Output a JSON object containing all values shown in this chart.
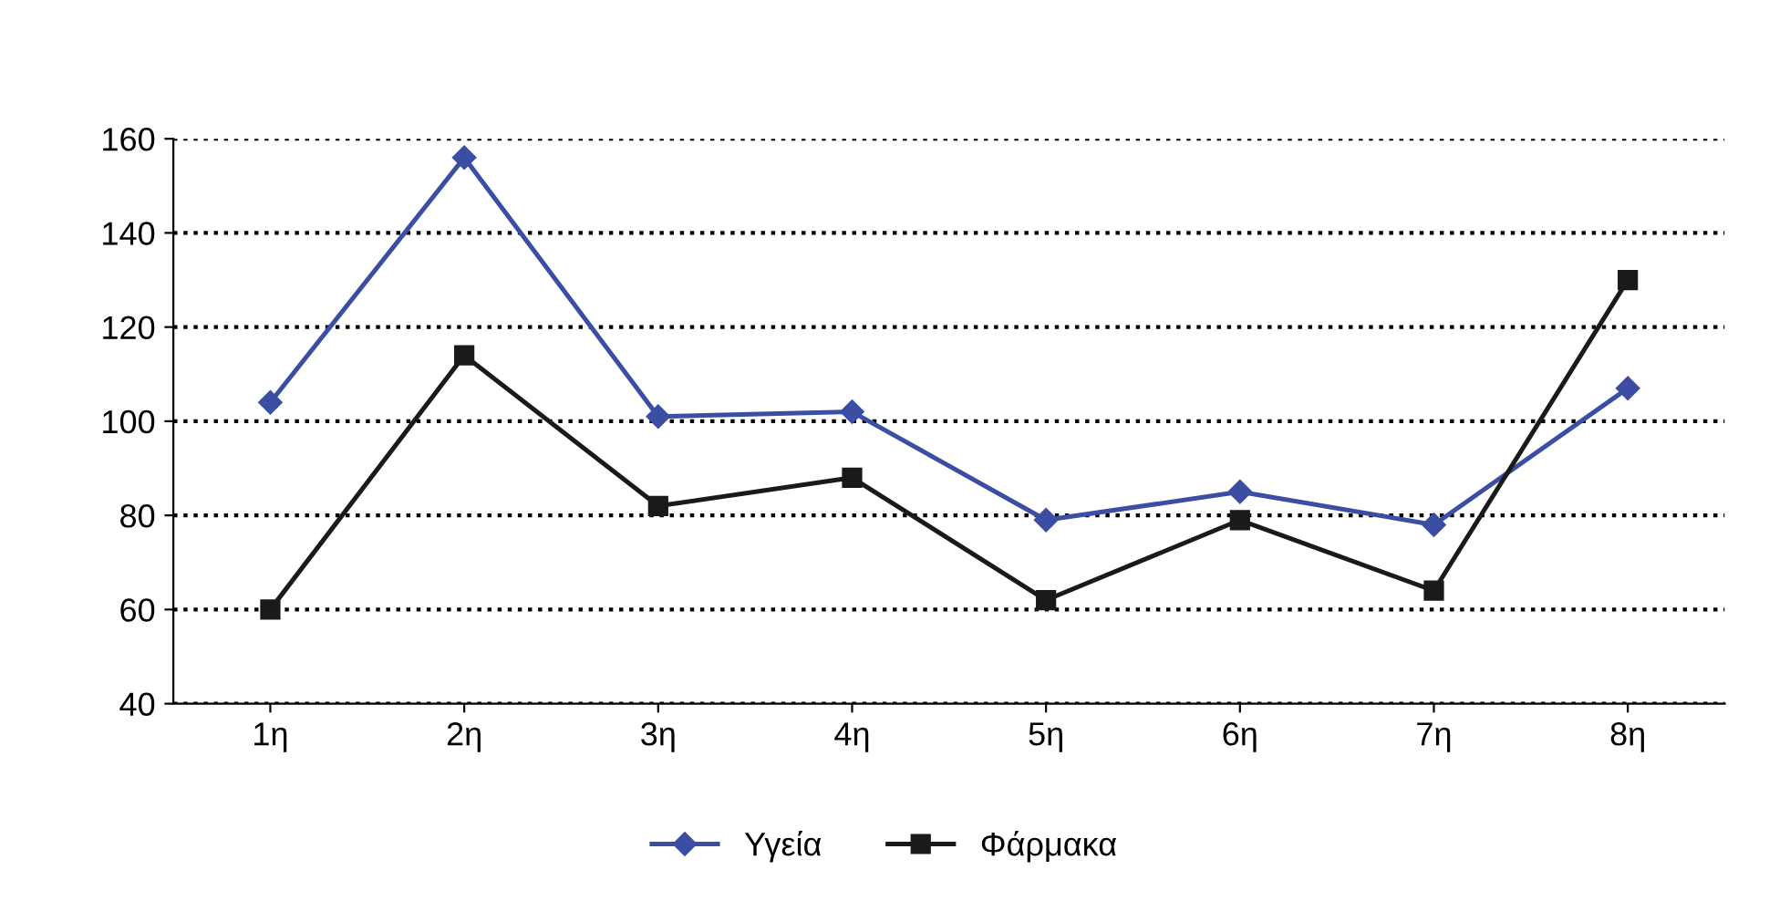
{
  "chart_data": {
    "type": "line",
    "categories": [
      "1η",
      "2η",
      "3η",
      "4η",
      "5η",
      "6η",
      "7η",
      "8η"
    ],
    "series": [
      {
        "name": "Υγεία",
        "color": "#3b4ea3",
        "marker": "diamond",
        "values": [
          104,
          156,
          101,
          102,
          79,
          85,
          78,
          107
        ]
      },
      {
        "name": "Φάρμακα",
        "color": "#1a1a1a",
        "marker": "square",
        "values": [
          60,
          114,
          82,
          88,
          62,
          79,
          64,
          130
        ]
      }
    ],
    "ylim": [
      40,
      160
    ],
    "yticks": [
      40,
      60,
      80,
      100,
      120,
      140,
      160
    ],
    "grid": "y",
    "legend": "bottom",
    "line_style": "solid"
  }
}
